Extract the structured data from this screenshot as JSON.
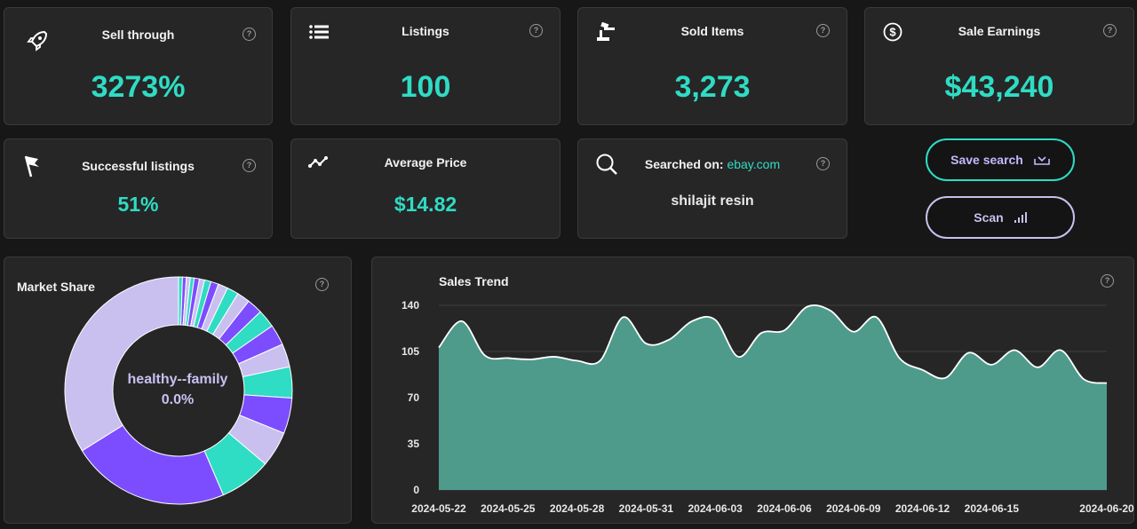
{
  "stats": {
    "sell_through": {
      "title": "Sell through",
      "value": "3273%"
    },
    "listings": {
      "title": "Listings",
      "value": "100"
    },
    "sold_items": {
      "title": "Sold Items",
      "value": "3,273"
    },
    "sale_earnings": {
      "title": "Sale Earnings",
      "value": "$43,240"
    },
    "successful_listings": {
      "title": "Successful listings",
      "value": "51%"
    },
    "average_price": {
      "title": "Average Price",
      "value": "$14.82"
    },
    "searched_on": {
      "title": "Searched on:",
      "site": "ebay.com",
      "query": "shilajit resin"
    }
  },
  "buttons": {
    "save_search": "Save search",
    "scan": "Scan"
  },
  "help_glyph": "?",
  "market_share": {
    "title": "Market Share",
    "center_label": "healthy--family",
    "center_value": "0.0%",
    "chart_data": {
      "type": "pie",
      "values": [
        0.6,
        0.6,
        0.6,
        0.6,
        0.8,
        0.8,
        1,
        1.2,
        1.5,
        1.8,
        2,
        2.4,
        2.8,
        3.2,
        3.6,
        4.8,
        5.5,
        5.5,
        8,
        24.5,
        36.8
      ],
      "colors": [
        "#2fdcc4",
        "#7c4dff",
        "#c9c0f0",
        "#2fdcc4",
        "#7c4dff",
        "#c9c0f0",
        "#2fdcc4",
        "#7c4dff",
        "#c9c0f0",
        "#2fdcc4",
        "#c9c0f0",
        "#7c4dff",
        "#2fdcc4",
        "#7c4dff",
        "#c9c0f0",
        "#2fdcc4",
        "#7c4dff",
        "#c9c0f0",
        "#2fdcc4",
        "#7c4dff",
        "#c9c0f0"
      ]
    }
  },
  "sales_trend": {
    "title": "Sales Trend",
    "chart_data": {
      "type": "area",
      "ylim": [
        0,
        140
      ],
      "yticks": [
        0,
        35,
        70,
        105,
        140
      ],
      "xticks": [
        "2024-05-22",
        "2024-05-25",
        "2024-05-28",
        "2024-05-31",
        "2024-06-03",
        "2024-06-06",
        "2024-06-09",
        "2024-06-12",
        "2024-06-15",
        "2024-06-20"
      ],
      "x": [
        "2024-05-22",
        "2024-05-23",
        "2024-05-24",
        "2024-05-25",
        "2024-05-26",
        "2024-05-27",
        "2024-05-28",
        "2024-05-29",
        "2024-05-30",
        "2024-05-31",
        "2024-06-01",
        "2024-06-02",
        "2024-06-03",
        "2024-06-04",
        "2024-06-05",
        "2024-06-06",
        "2024-06-07",
        "2024-06-08",
        "2024-06-09",
        "2024-06-10",
        "2024-06-11",
        "2024-06-12",
        "2024-06-13",
        "2024-06-14",
        "2024-06-15",
        "2024-06-16",
        "2024-06-17",
        "2024-06-18",
        "2024-06-19",
        "2024-06-20"
      ],
      "values": [
        108,
        128,
        102,
        100,
        99,
        101,
        98,
        98,
        131,
        111,
        114,
        128,
        129,
        101,
        119,
        121,
        139,
        136,
        120,
        131,
        100,
        91,
        85,
        104,
        95,
        106,
        93,
        106,
        84,
        81
      ],
      "colors": {
        "fill": "#4e9b8c",
        "line": "#ffffff",
        "grid": "#3e3e3e"
      }
    }
  }
}
